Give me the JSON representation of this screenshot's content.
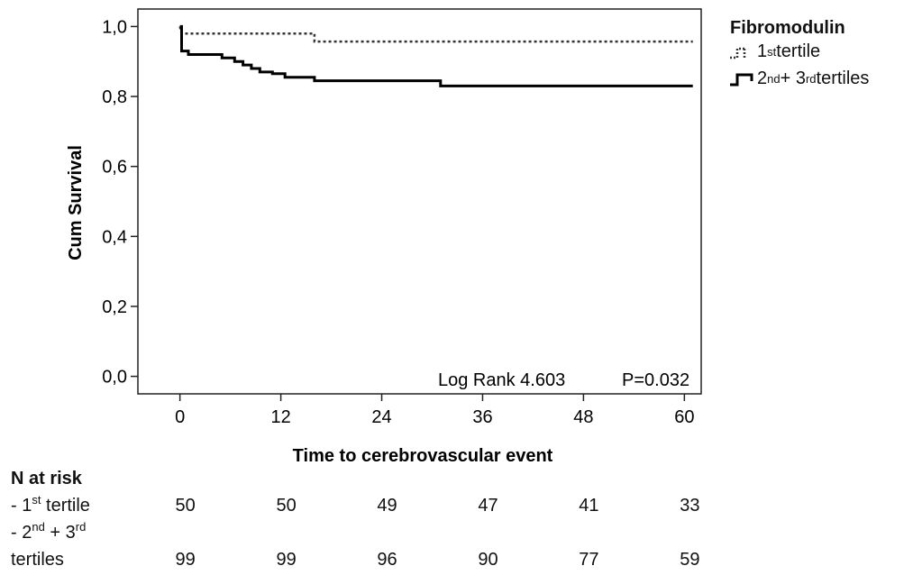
{
  "chart_data": {
    "type": "line",
    "chart_subtype": "kaplan-meier",
    "title": "",
    "xlabel": "Time to cerebrovascular event",
    "ylabel": "Cum Survival",
    "xlim": [
      -5,
      62
    ],
    "ylim": [
      -0.05,
      1.05
    ],
    "x_ticks": [
      0,
      12,
      24,
      36,
      48,
      60
    ],
    "y_ticks": [
      0.0,
      0.2,
      0.4,
      0.6,
      0.8,
      1.0
    ],
    "y_tick_labels": [
      "0,0",
      "0,2",
      "0,4",
      "0,6",
      "0,8",
      "1,0"
    ],
    "grid": false,
    "legend_placement": "right",
    "legend_title": "Fibromodulin",
    "series": [
      {
        "name": "1st tertile",
        "line_style": "dotted",
        "color": "#333333",
        "x": [
          0,
          0.2,
          16,
          16,
          61
        ],
        "y": [
          1.0,
          0.98,
          0.98,
          0.957,
          0.957
        ]
      },
      {
        "name": "2nd + 3rd tertiles",
        "line_style": "solid",
        "color": "#000000",
        "x": [
          0,
          0.2,
          0.2,
          1,
          1,
          5,
          5,
          6.5,
          6.5,
          7.5,
          7.5,
          8.5,
          8.5,
          9.5,
          9.5,
          11,
          11,
          12.5,
          12.5,
          16,
          16,
          31,
          31,
          61
        ],
        "y": [
          1.0,
          1.0,
          0.93,
          0.93,
          0.92,
          0.92,
          0.91,
          0.91,
          0.9,
          0.9,
          0.89,
          0.89,
          0.88,
          0.88,
          0.87,
          0.87,
          0.865,
          0.865,
          0.855,
          0.855,
          0.845,
          0.845,
          0.83,
          0.83
        ]
      }
    ],
    "annotation": {
      "log_rank": "Log Rank 4.603",
      "p_value": "P=0.032"
    }
  },
  "legend": {
    "title": "Fibromodulin",
    "items": [
      {
        "base": "1",
        "sup": "st",
        "rest": " tertile"
      },
      {
        "base": "2",
        "sup": "nd",
        "mid": " + 3",
        "sup2": "rd",
        "rest": " tertiles"
      }
    ]
  },
  "risk_table": {
    "title": "N at risk",
    "row1_label": {
      "prefix": "- 1",
      "sup": "st",
      "rest": " tertile"
    },
    "row2_label_line1": {
      "prefix": "- 2",
      "sup": "nd",
      "mid": " + 3",
      "sup2": "rd"
    },
    "row2_label_line2": "tertiles",
    "row1_values": [
      "50",
      "50",
      "49",
      "47",
      "41",
      "33"
    ],
    "row2_values": [
      "99",
      "99",
      "96",
      "90",
      "77",
      "59"
    ]
  }
}
